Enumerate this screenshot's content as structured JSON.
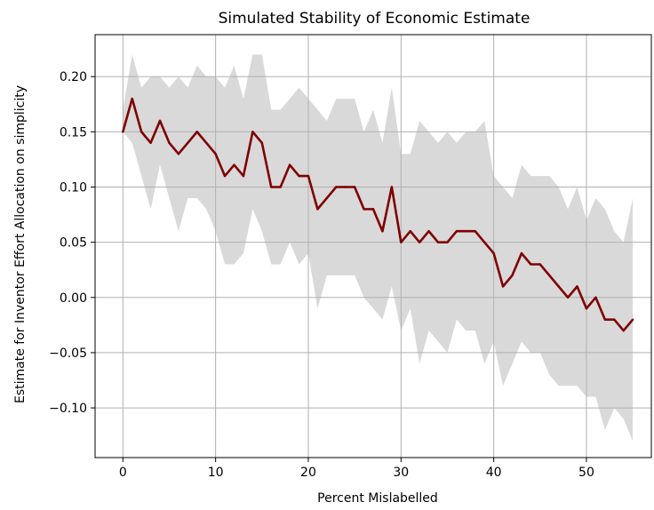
{
  "chart_data": {
    "type": "line",
    "title": "Simulated Stability of Economic Estimate",
    "xlabel": "Percent Mislabelled",
    "ylabel": "Estimate for Inventor Effort Allocation on simplicity",
    "xlim": [
      -3,
      57
    ],
    "ylim": [
      -0.145,
      0.238
    ],
    "xticks": [
      0,
      10,
      20,
      30,
      40,
      50
    ],
    "xtick_labels": [
      "0",
      "10",
      "20",
      "30",
      "40",
      "50"
    ],
    "yticks": [
      -0.1,
      -0.05,
      0.0,
      0.05,
      0.1,
      0.15,
      0.2
    ],
    "ytick_labels": [
      "−0.10",
      "−0.05",
      "0.00",
      "0.05",
      "0.10",
      "0.15",
      "0.20"
    ],
    "grid": true,
    "x": [
      0,
      1,
      2,
      3,
      4,
      5,
      6,
      7,
      8,
      9,
      10,
      11,
      12,
      13,
      14,
      15,
      16,
      17,
      18,
      19,
      20,
      21,
      22,
      23,
      24,
      25,
      26,
      27,
      28,
      29,
      30,
      31,
      32,
      33,
      34,
      35,
      36,
      37,
      38,
      39,
      40,
      41,
      42,
      43,
      44,
      45,
      46,
      47,
      48,
      49,
      50,
      51,
      52,
      53,
      54,
      55
    ],
    "series": [
      {
        "values": [
          0.15,
          0.18,
          0.15,
          0.14,
          0.16,
          0.14,
          0.13,
          0.14,
          0.15,
          0.14,
          0.13,
          0.11,
          0.12,
          0.11,
          0.15,
          0.14,
          0.1,
          0.1,
          0.12,
          0.11,
          0.11,
          0.08,
          0.09,
          0.1,
          0.1,
          0.1,
          0.08,
          0.08,
          0.06,
          0.1,
          0.05,
          0.06,
          0.05,
          0.06,
          0.05,
          0.05,
          0.06,
          0.06,
          0.06,
          0.05,
          0.04,
          0.01,
          0.02,
          0.04,
          0.03,
          0.03,
          0.02,
          0.01,
          0.0,
          0.01,
          -0.01,
          0.0,
          -0.02,
          -0.02,
          -0.03,
          -0.02
        ],
        "color": "#800000"
      }
    ],
    "band": {
      "upper": [
        0.17,
        0.22,
        0.19,
        0.2,
        0.2,
        0.19,
        0.2,
        0.19,
        0.21,
        0.2,
        0.2,
        0.19,
        0.21,
        0.18,
        0.22,
        0.22,
        0.17,
        0.17,
        0.18,
        0.19,
        0.18,
        0.17,
        0.16,
        0.18,
        0.18,
        0.18,
        0.15,
        0.17,
        0.14,
        0.19,
        0.13,
        0.13,
        0.16,
        0.15,
        0.14,
        0.15,
        0.14,
        0.15,
        0.15,
        0.16,
        0.11,
        0.1,
        0.09,
        0.12,
        0.11,
        0.11,
        0.11,
        0.1,
        0.08,
        0.1,
        0.07,
        0.09,
        0.08,
        0.06,
        0.05,
        0.09
      ],
      "lower": [
        0.15,
        0.14,
        0.11,
        0.08,
        0.12,
        0.09,
        0.06,
        0.09,
        0.09,
        0.08,
        0.06,
        0.03,
        0.03,
        0.04,
        0.08,
        0.06,
        0.03,
        0.03,
        0.05,
        0.03,
        0.04,
        -0.01,
        0.02,
        0.02,
        0.02,
        0.02,
        0.0,
        -0.01,
        -0.02,
        0.01,
        -0.03,
        -0.01,
        -0.06,
        -0.03,
        -0.04,
        -0.05,
        -0.02,
        -0.03,
        -0.03,
        -0.06,
        -0.04,
        -0.08,
        -0.06,
        -0.04,
        -0.05,
        -0.05,
        -0.07,
        -0.08,
        -0.08,
        -0.08,
        -0.09,
        -0.09,
        -0.12,
        -0.1,
        -0.11,
        -0.13
      ],
      "color": "#d9d9d9"
    }
  }
}
